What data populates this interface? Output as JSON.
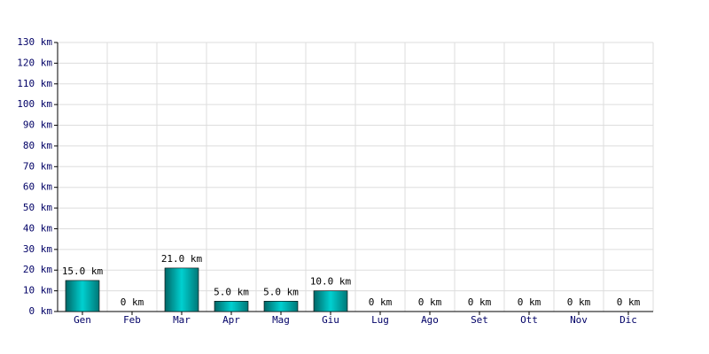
{
  "chart_data": {
    "type": "bar",
    "categories": [
      "Gen",
      "Feb",
      "Mar",
      "Apr",
      "Mag",
      "Giu",
      "Lug",
      "Ago",
      "Set",
      "Ott",
      "Nov",
      "Dic"
    ],
    "values": [
      15,
      0,
      21,
      5,
      5,
      10,
      0,
      0,
      0,
      0,
      0,
      0
    ],
    "value_labels": [
      "15.0 km",
      "0 km",
      "21.0 km",
      "5.0 km",
      "5.0 km",
      "10.0 km",
      "0 km",
      "0 km",
      "0 km",
      "0 km",
      "0 km",
      "0 km"
    ],
    "color": "#00d0d0",
    "ylim": [
      0,
      130
    ],
    "yticks": [
      {
        "value": 0,
        "label": "0 km"
      },
      {
        "value": 10,
        "label": "10 km"
      },
      {
        "value": 20,
        "label": "20 km"
      },
      {
        "value": 30,
        "label": "30 km"
      },
      {
        "value": 40,
        "label": "40 km"
      },
      {
        "value": 50,
        "label": "50 km"
      },
      {
        "value": 60,
        "label": "60 km"
      },
      {
        "value": 70,
        "label": "70 km"
      },
      {
        "value": 80,
        "label": "80 km"
      },
      {
        "value": 90,
        "label": "90 km"
      },
      {
        "value": 100,
        "label": "100 km"
      },
      {
        "value": 110,
        "label": "110 km"
      },
      {
        "value": 120,
        "label": "120 km"
      },
      {
        "value": 130,
        "label": "130 km"
      }
    ],
    "grid": true
  }
}
